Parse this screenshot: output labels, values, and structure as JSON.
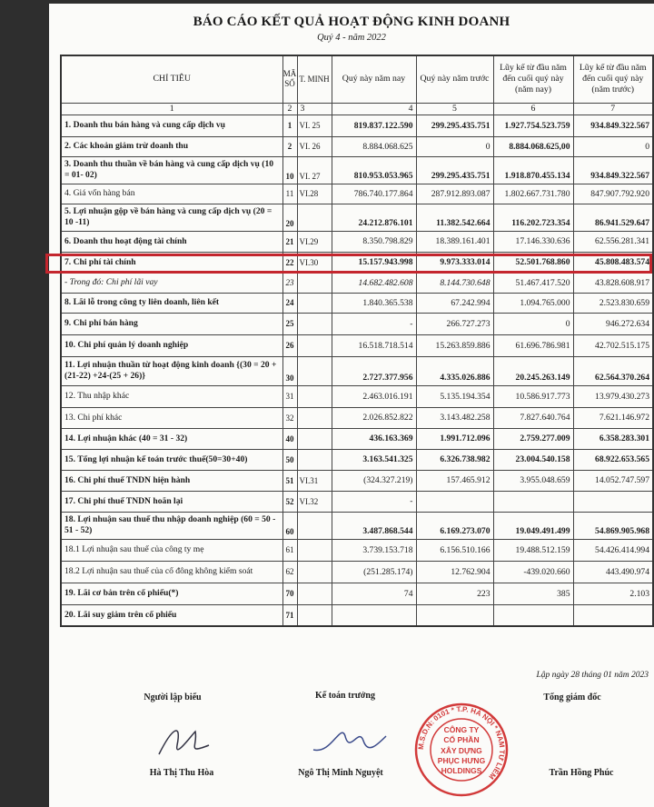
{
  "document": {
    "title": "BÁO CÁO KẾT QUẢ HOẠT ĐỘNG KINH DOANH",
    "subtitle": "Quý 4 - năm 2022"
  },
  "table": {
    "headers": [
      "CHỈ TIÊU",
      "MÃ SỐ",
      "T. MINH",
      "Quý này năm nay",
      "Quý này năm trước",
      "Lũy kế từ đầu năm đến cuối quý này (năm nay)",
      "Lũy kế từ đầu năm đến cuối quý này (năm trước)"
    ],
    "index_row": [
      "1",
      "2",
      "3",
      "4",
      "5",
      "6",
      "7"
    ],
    "rows": [
      {
        "label": "1. Doanh thu bán hàng và cung cấp dịch vụ",
        "code": "1",
        "note": "VI. 25",
        "q_this": "819.837.122.590",
        "q_prev": "299.295.435.751",
        "ytd_this": "1.927.754.523.759",
        "ytd_prev": "934.849.322.567"
      },
      {
        "label": "2. Các khoản giảm trừ doanh thu",
        "code": "2",
        "note": "VI. 26",
        "q_this": "8.884.068.625",
        "q_prev": "0",
        "ytd_this": "8.884.068.625,00",
        "ytd_prev": "0"
      },
      {
        "label": "3. Doanh thu thuần về bán hàng và cung cấp dịch vụ (10 = 01- 02)",
        "code": "10",
        "note": "VI. 27",
        "q_this": "810.953.053.965",
        "q_prev": "299.295.435.751",
        "ytd_this": "1.918.870.455.134",
        "ytd_prev": "934.849.322.567"
      },
      {
        "label": "4. Giá vốn hàng bán",
        "code": "11",
        "note": "VI.28",
        "q_this": "786.740.177.864",
        "q_prev": "287.912.893.087",
        "ytd_this": "1.802.667.731.780",
        "ytd_prev": "847.907.792.920"
      },
      {
        "label": "5. Lợi nhuận gộp về bán hàng và cung cấp dịch vụ (20 = 10 -11)",
        "code": "20",
        "note": "",
        "q_this": "24.212.876.101",
        "q_prev": "11.382.542.664",
        "ytd_this": "116.202.723.354",
        "ytd_prev": "86.941.529.647"
      },
      {
        "label": "6. Doanh thu hoạt động tài chính",
        "code": "21",
        "note": "VI.29",
        "q_this": "8.350.798.829",
        "q_prev": "18.389.161.401",
        "ytd_this": "17.146.330.636",
        "ytd_prev": "62.556.281.341"
      },
      {
        "label": "7. Chi phí tài chính",
        "code": "22",
        "note": "VI.30",
        "q_this": "15.157.943.998",
        "q_prev": "9.973.333.014",
        "ytd_this": "52.501.768.860",
        "ytd_prev": "45.808.483.574"
      },
      {
        "label": "- Trong đó: Chi phí lãi vay",
        "code": "23",
        "note": "",
        "q_this": "14.682.482.608",
        "q_prev": "8.144.730.648",
        "ytd_this": "51.467.417.520",
        "ytd_prev": "43.828.608.917"
      },
      {
        "label": "8. Lãi lỗ trong công ty liên doanh, liên kết",
        "code": "24",
        "note": "",
        "q_this": "1.840.365.538",
        "q_prev": "67.242.994",
        "ytd_this": "1.094.765.000",
        "ytd_prev": "2.523.830.659"
      },
      {
        "label": "9. Chi phí bán hàng",
        "code": "25",
        "note": "",
        "q_this": "-",
        "q_prev": "266.727.273",
        "ytd_this": "0",
        "ytd_prev": "946.272.634"
      },
      {
        "label": "10. Chi phí quản lý doanh nghiệp",
        "code": "26",
        "note": "",
        "q_this": "16.518.718.514",
        "q_prev": "15.263.859.886",
        "ytd_this": "61.696.786.981",
        "ytd_prev": "42.702.515.175"
      },
      {
        "label": "11. Lợi nhuận thuần từ hoạt động kinh doanh {(30 = 20 + (21-22) +24-(25 + 26)}",
        "code": "30",
        "note": "",
        "q_this": "2.727.377.956",
        "q_prev": "4.335.026.886",
        "ytd_this": "20.245.263.149",
        "ytd_prev": "62.564.370.264"
      },
      {
        "label": "12. Thu nhập khác",
        "code": "31",
        "note": "",
        "q_this": "2.463.016.191",
        "q_prev": "5.135.194.354",
        "ytd_this": "10.586.917.773",
        "ytd_prev": "13.979.430.273"
      },
      {
        "label": "13. Chi phí khác",
        "code": "32",
        "note": "",
        "q_this": "2.026.852.822",
        "q_prev": "3.143.482.258",
        "ytd_this": "7.827.640.764",
        "ytd_prev": "7.621.146.972"
      },
      {
        "label": "14. Lợi nhuận khác (40 = 31 - 32)",
        "code": "40",
        "note": "",
        "q_this": "436.163.369",
        "q_prev": "1.991.712.096",
        "ytd_this": "2.759.277.009",
        "ytd_prev": "6.358.283.301"
      },
      {
        "label": "15. Tổng lợi nhuận kế toán trước thuế(50=30+40)",
        "code": "50",
        "note": "",
        "q_this": "3.163.541.325",
        "q_prev": "6.326.738.982",
        "ytd_this": "23.004.540.158",
        "ytd_prev": "68.922.653.565"
      },
      {
        "label": "16. Chi phí thuế TNDN hiện hành",
        "code": "51",
        "note": "VI.31",
        "q_this": "(324.327.219)",
        "q_prev": "157.465.912",
        "ytd_this": "3.955.048.659",
        "ytd_prev": "14.052.747.597"
      },
      {
        "label": "17. Chi phí thuế TNDN hoãn lại",
        "code": "52",
        "note": "VI.32",
        "q_this": "-",
        "q_prev": "",
        "ytd_this": "",
        "ytd_prev": ""
      },
      {
        "label": "18. Lợi nhuận sau thuế thu nhập doanh nghiệp (60 = 50 - 51 - 52)",
        "code": "60",
        "note": "",
        "q_this": "3.487.868.544",
        "q_prev": "6.169.273.070",
        "ytd_this": "19.049.491.499",
        "ytd_prev": "54.869.905.968"
      },
      {
        "label": "18.1 Lợi nhuận sau thuế của công ty mẹ",
        "code": "61",
        "note": "",
        "q_this": "3.739.153.718",
        "q_prev": "6.156.510.166",
        "ytd_this": "19.488.512.159",
        "ytd_prev": "54.426.414.994"
      },
      {
        "label": "18.2 Lợi nhuận sau thuế của cổ đông không kiểm soát",
        "code": "62",
        "note": "",
        "q_this": "(251.285.174)",
        "q_prev": "12.762.904",
        "ytd_this": "-439.020.660",
        "ytd_prev": "443.490.974"
      },
      {
        "label": "19. Lãi cơ bản trên cổ phiếu(*)",
        "code": "70",
        "note": "",
        "q_this": "74",
        "q_prev": "223",
        "ytd_this": "385",
        "ytd_prev": "2.103"
      },
      {
        "label": "20. Lãi suy giảm trên cổ phiếu",
        "code": "71",
        "note": "",
        "q_this": "",
        "q_prev": "",
        "ytd_this": "",
        "ytd_prev": ""
      }
    ]
  },
  "highlight": {
    "row": "7. Chi phí tài chính",
    "color": "#c4262e"
  },
  "signatures": {
    "date_line": "Lập ngày 28 tháng 01 năm 2023",
    "preparer_title": "Người lập biểu",
    "preparer_name": "Hà Thị Thu Hòa",
    "accountant_title": "Kế toán trưởng",
    "accountant_name": "Ngô Thị Minh Nguyệt",
    "director_title": "Tổng giám đốc",
    "director_name": "Trần Hồng Phúc"
  },
  "stamp": {
    "text_lines": [
      "CÔNG TY",
      "CỔ PHẦN",
      "XÂY DỰNG",
      "PHỤC HƯNG",
      "HOLDINGS"
    ],
    "ring_text": "M.S.D.N: 0101 * T.P. HÀ NỘI * NAM TỪ LIÊM",
    "color": "#d23a3a"
  }
}
